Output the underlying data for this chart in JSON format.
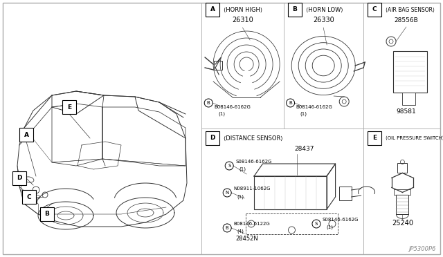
{
  "background_color": "#ffffff",
  "border_color": "#000000",
  "text_color": "#000000",
  "line_color": "#333333",
  "diagram_code": "JP5300P6",
  "sections": {
    "A": {
      "label": "HORN HIGH",
      "part": "26310",
      "bolt": "B08146-6162G",
      "bolt_qty": "(1)"
    },
    "B": {
      "label": "HORN LOW",
      "part": "26330",
      "bolt": "B08146-6162G",
      "bolt_qty": "(1)"
    },
    "C": {
      "label": "AIR BAG SENSOR",
      "part1": "28556B",
      "part2": "98581"
    },
    "D": {
      "label": "DISTANCE SENSOR",
      "part1": "28437",
      "part2": "28452N",
      "bolt1": "S08146-6162G",
      "bolt1_qty": "(1)",
      "bolt2": "N08911-1062G",
      "bolt2_qty": "(1)",
      "bolt3": "B08146-6122G",
      "bolt3_qty": "(4)",
      "bolt4": "S08146-6162G",
      "bolt4_qty": "(1)"
    },
    "E": {
      "label": "OIL PRESSURE SWITCH",
      "part": "25240"
    }
  },
  "dividers": {
    "vert_main": 0.455,
    "vert_bc": 0.64,
    "vert_de": 0.82,
    "horiz_mid": 0.5
  }
}
